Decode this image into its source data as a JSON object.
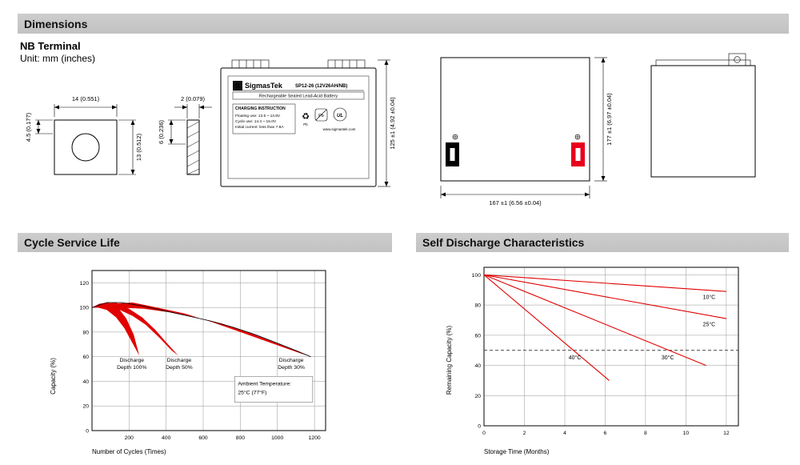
{
  "header": {
    "title": "Dimensions",
    "subtitle": "NB Terminal",
    "unit_note": "Unit: mm (inches)"
  },
  "sections": {
    "cycle_title": "Cycle Service Life",
    "self_discharge_title": "Self Discharge Characteristics"
  },
  "drawings": {
    "terminal_front": {
      "dim_width": "14 (0.551)",
      "dim_offset": "4.5 (0.177)",
      "dim_height": "13 (0.512)"
    },
    "terminal_side": {
      "dim_thickness": "2 (0.079)",
      "dim_depth": "6 (0.236)"
    },
    "battery_front": {
      "logo_letter": "S",
      "brand": "SigmasTek",
      "model": "SP12-26 (12V26AH/NB)",
      "battery_type": "Rechargeable Sealed Lead-Acid Battery",
      "charging_title": "CHARGING INSTRUCTION",
      "charging_line1": "Floating use: 13.5 ~ 13.8V",
      "charging_line2": "Cycle use: 14.4 ~ 15.0V",
      "charging_line3": "Initial current: less than 7.8A",
      "website": "www.sigmastek.com",
      "icons": {
        "recycle": "♻",
        "pb": "Pb",
        "ul": "UL"
      },
      "dim_height": "125 ±1 (4.92 ±0.04)"
    },
    "battery_side": {
      "dim_height": "177 ±1 (6.97 ±0.04)",
      "dim_width": "167 ±1 (6.56 ±0.04)"
    }
  },
  "chart_data": [
    {
      "type": "area",
      "title": "Cycle Service Life",
      "xlabel": "Number of Cycles (Times)",
      "ylabel": "Capacity (%)",
      "xlim": [
        0,
        1260
      ],
      "ylim": [
        0,
        130
      ],
      "xticks": [
        200,
        400,
        600,
        800,
        1000,
        1200
      ],
      "yticks": [
        0,
        20,
        40,
        60,
        80,
        100,
        120
      ],
      "grid": true,
      "band_color": "#e10000",
      "ambient_note": [
        "Ambient Temperature:",
        "25°C (77°F)"
      ],
      "annotation_box": {
        "x1": 770,
        "y1": 23,
        "x2": 1190,
        "y2": 44
      },
      "envelope": [
        [
          0,
          100
        ],
        [
          80,
          104
        ],
        [
          160,
          104
        ],
        [
          280,
          101
        ],
        [
          400,
          97
        ],
        [
          520,
          93
        ],
        [
          640,
          89
        ],
        [
          760,
          84
        ],
        [
          880,
          78
        ],
        [
          1000,
          71
        ],
        [
          1100,
          65
        ],
        [
          1180,
          60
        ]
      ],
      "bands": [
        {
          "name": "discharge-depth-100",
          "label_lines": [
            "Discharge",
            "Depth 100%"
          ],
          "label_at": [
            215,
            56
          ],
          "points": [
            [
              0,
              100
            ],
            [
              40,
              103
            ],
            [
              90,
              104
            ],
            [
              140,
              100
            ],
            [
              185,
              91
            ],
            [
              225,
              78
            ],
            [
              255,
              61
            ],
            [
              215,
              72
            ],
            [
              175,
              83
            ],
            [
              130,
              92
            ],
            [
              80,
              98
            ],
            [
              30,
              100
            ]
          ]
        },
        {
          "name": "discharge-depth-50",
          "label_lines": [
            "Discharge",
            "Depth 50%"
          ],
          "label_at": [
            470,
            56
          ],
          "points": [
            [
              0,
              100
            ],
            [
              60,
              103
            ],
            [
              130,
              104
            ],
            [
              200,
              99
            ],
            [
              270,
              92
            ],
            [
              340,
              82
            ],
            [
              410,
              70
            ],
            [
              465,
              61
            ],
            [
              430,
              65
            ],
            [
              360,
              76
            ],
            [
              290,
              86
            ],
            [
              220,
              93
            ],
            [
              150,
              98
            ],
            [
              80,
              100
            ]
          ]
        },
        {
          "name": "discharge-depth-30",
          "label_lines": [
            "Discharge",
            "Depth 30%"
          ],
          "label_at": [
            1075,
            56
          ],
          "points": [
            [
              0,
              100
            ],
            [
              100,
              103
            ],
            [
              220,
              104
            ],
            [
              350,
              100
            ],
            [
              500,
              95
            ],
            [
              650,
              88
            ],
            [
              800,
              80
            ],
            [
              950,
              72
            ],
            [
              1100,
              64
            ],
            [
              1180,
              60
            ],
            [
              1120,
              64
            ],
            [
              980,
              72
            ],
            [
              840,
              80
            ],
            [
              700,
              87
            ],
            [
              560,
              92
            ],
            [
              420,
              96
            ],
            [
              280,
              99
            ],
            [
              140,
              100
            ]
          ]
        }
      ]
    },
    {
      "type": "line",
      "title": "Self Discharge Characteristics",
      "xlabel": "Storage Time (Months)",
      "ylabel": "Remaining Capacity (%)",
      "xlim": [
        0,
        12.6
      ],
      "ylim": [
        0,
        105
      ],
      "xticks": [
        0,
        2,
        4,
        6,
        8,
        10,
        12
      ],
      "yticks": [
        0,
        20,
        40,
        60,
        80,
        100
      ],
      "grid": true,
      "line_color": "#e10000",
      "dashed_level": 50,
      "series": [
        {
          "name": "10C",
          "label": "10°C",
          "points": [
            [
              0,
              100
            ],
            [
              12,
              89
            ]
          ],
          "label_at": [
            11.15,
            84
          ]
        },
        {
          "name": "25C",
          "label": "25°C",
          "points": [
            [
              0,
              100
            ],
            [
              12,
              71
            ]
          ],
          "label_at": [
            11.15,
            66
          ]
        },
        {
          "name": "30C",
          "label": "30°C",
          "points": [
            [
              0,
              100
            ],
            [
              11,
              40
            ]
          ],
          "label_at": [
            9.1,
            44
          ]
        },
        {
          "name": "40C",
          "label": "40°C",
          "points": [
            [
              0,
              100
            ],
            [
              6.2,
              30
            ]
          ],
          "label_at": [
            4.5,
            44
          ]
        }
      ]
    }
  ]
}
